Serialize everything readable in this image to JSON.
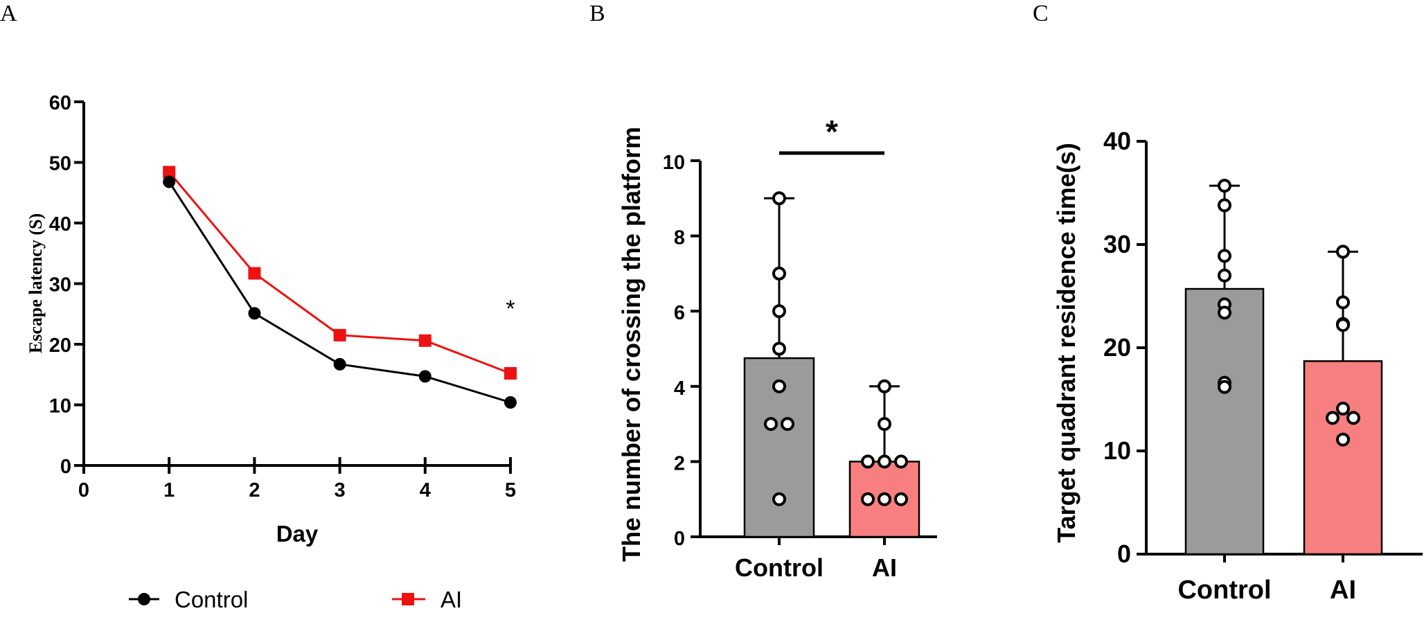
{
  "panels": {
    "a": "A",
    "b": "B",
    "c": "C"
  },
  "colors": {
    "control_line": "#000000",
    "ai_line": "#ee1111",
    "control_bar": "#9b9b9b",
    "ai_bar": "#f77f7f",
    "axis": "#000000"
  },
  "chart_data": [
    {
      "type": "line",
      "title": "",
      "xlabel": "Day",
      "ylabel": "Escape latency (S)",
      "x": [
        1,
        2,
        3,
        4,
        5
      ],
      "xticks": [
        "0",
        "1",
        "2",
        "3",
        "4",
        "5"
      ],
      "yticks": [
        "0",
        "10",
        "20",
        "30",
        "40",
        "50",
        "60"
      ],
      "xlim": [
        0,
        5
      ],
      "ylim": [
        0,
        60
      ],
      "series": [
        {
          "name": "Control",
          "marker": "circle",
          "color": "#000000",
          "values": [
            46.8,
            25.1,
            16.7,
            14.7,
            10.4
          ]
        },
        {
          "name": "AI",
          "marker": "square",
          "color": "#ee1111",
          "values": [
            48.4,
            31.7,
            21.5,
            20.6,
            15.2
          ]
        }
      ],
      "annotations": [
        {
          "text": "*",
          "x": 5
        }
      ],
      "legend": "bottom",
      "grid": false
    },
    {
      "type": "bar",
      "title": "",
      "xlabel": "",
      "ylabel": "The number of crossing the platform",
      "categories": [
        "Control",
        "AI"
      ],
      "values": [
        4.75,
        2.0
      ],
      "error_max": [
        9,
        4
      ],
      "points": [
        [
          9,
          7,
          6,
          5,
          4,
          3,
          3,
          1
        ],
        [
          4,
          3,
          2,
          2,
          2,
          1,
          1,
          1
        ]
      ],
      "yticks": [
        "0",
        "2",
        "4",
        "6",
        "8",
        "10"
      ],
      "ylim": [
        0,
        10
      ],
      "significance": {
        "text": "*",
        "between": [
          "Control",
          "AI"
        ]
      },
      "grid": false
    },
    {
      "type": "bar",
      "title": "",
      "xlabel": "",
      "ylabel": "Target quadrant residence time(s)",
      "categories": [
        "Control",
        "AI"
      ],
      "values": [
        25.7,
        18.7
      ],
      "error_max": [
        35.7,
        29.3
      ],
      "points": [
        [
          35.7,
          33.8,
          28.9,
          27.0,
          24.2,
          23.4,
          16.6,
          16.2
        ],
        [
          29.3,
          24.4,
          22.3,
          22.2,
          14.1,
          13.2,
          13.2,
          11.1
        ]
      ],
      "yticks": [
        "0",
        "10",
        "20",
        "30",
        "40"
      ],
      "ylim": [
        0,
        40
      ],
      "grid": false
    }
  ]
}
